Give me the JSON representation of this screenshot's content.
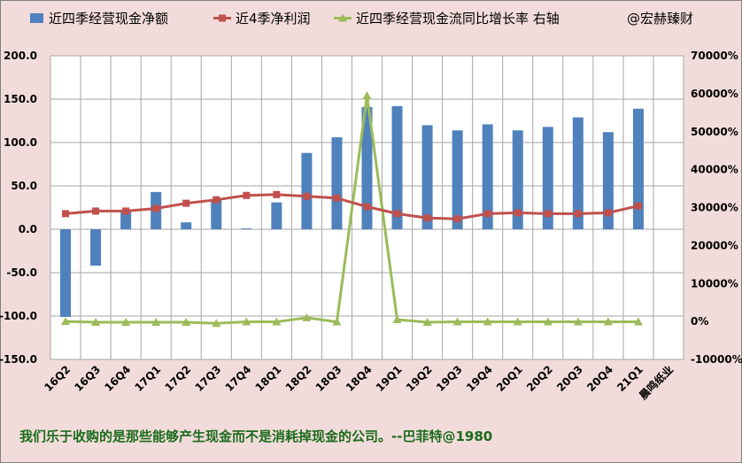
{
  "chart_data": {
    "type": "bar+line",
    "categories": [
      "16Q2",
      "16Q3",
      "16Q4",
      "17Q1",
      "17Q2",
      "17Q3",
      "17Q4",
      "18Q1",
      "18Q2",
      "18Q3",
      "18Q4",
      "19Q1",
      "19Q2",
      "19Q3",
      "19Q4",
      "20Q1",
      "20Q2",
      "20Q3",
      "20Q4",
      "21Q1"
    ],
    "extra_category_label": "晨鸣纸业",
    "series": [
      {
        "name": "近四季经营现金净额",
        "type": "bar",
        "axis": "left",
        "color": "#4f81bd",
        "values": [
          -101,
          -42,
          22,
          43,
          8,
          35,
          1,
          31,
          88,
          106,
          141,
          142,
          120,
          114,
          121,
          114,
          118,
          129,
          112,
          139
        ]
      },
      {
        "name": "近4季净利润",
        "type": "line",
        "axis": "left",
        "color": "#c0504d",
        "values": [
          18,
          21,
          21,
          24,
          30,
          34,
          39,
          40,
          38,
          36,
          26,
          18,
          13,
          12,
          18,
          19,
          18,
          18,
          19,
          27
        ]
      },
      {
        "name": "近四季经营现金流同比增长率 右轴",
        "type": "line",
        "axis": "right",
        "color": "#9bbb59",
        "values": [
          0,
          -200,
          -200,
          -200,
          -200,
          -500,
          -100,
          -100,
          1000,
          -100,
          59500,
          500,
          -200,
          -100,
          -100,
          -100,
          -100,
          -100,
          -100,
          -100
        ]
      }
    ],
    "legend_note": "@宏赫臻财",
    "y_left": {
      "min": -150,
      "max": 200,
      "step": 50,
      "tick_labels": [
        "-150.0",
        "-100.0",
        "-50.0",
        "0.0",
        "50.0",
        "100.0",
        "150.0",
        "200.0"
      ]
    },
    "y_right": {
      "min": -10000,
      "max": 70000,
      "step": 10000,
      "tick_labels": [
        "-10000%",
        "0%",
        "10000%",
        "20000%",
        "30000%",
        "40000%",
        "50000%",
        "60000%",
        "70000%"
      ]
    },
    "legend_position": "top",
    "grid": true
  },
  "quote": "我们乐于收购的是那些能够产生现金而不是消耗掉现金的公司。--巴菲特@1980"
}
